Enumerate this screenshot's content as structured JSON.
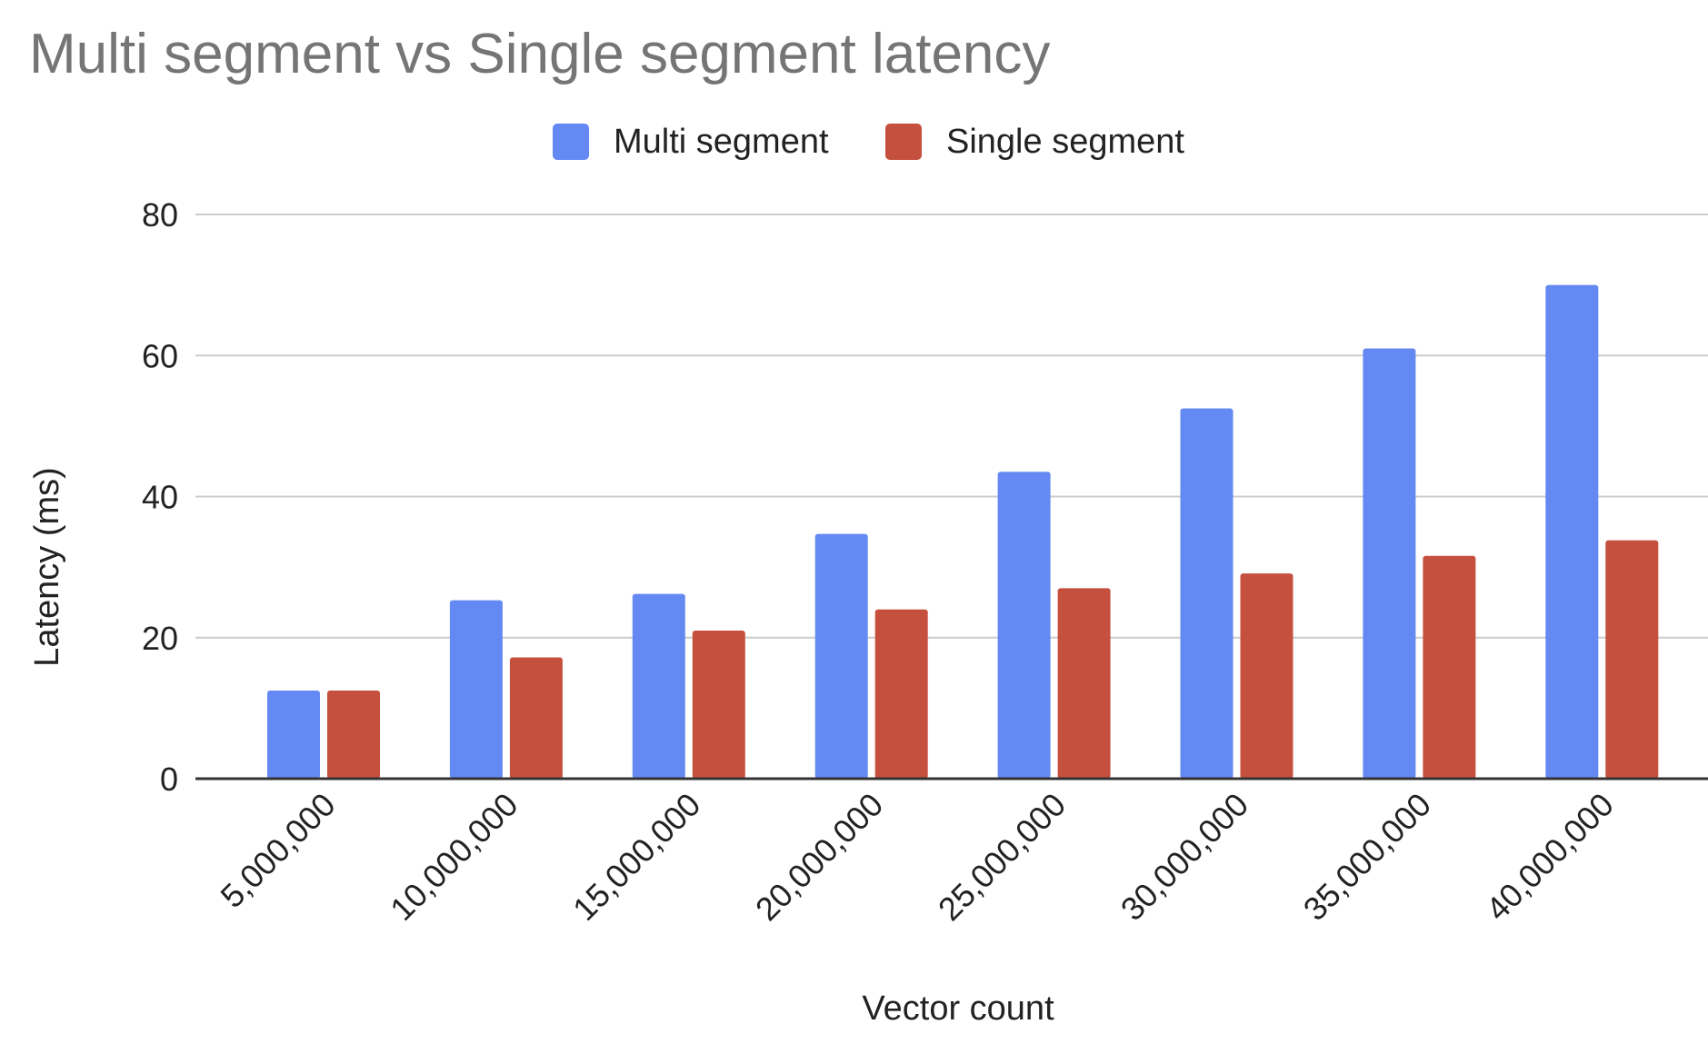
{
  "chart_data": {
    "type": "bar",
    "title": "Multi segment vs Single segment latency",
    "xlabel": "Vector count",
    "ylabel": "Latency (ms)",
    "ylim": [
      0,
      80
    ],
    "yticks": [
      "0",
      "20",
      "40",
      "60",
      "80"
    ],
    "grid": true,
    "legend_position": "top-center",
    "categories": [
      "5,000,000",
      "10,000,000",
      "15,000,000",
      "20,000,000",
      "25,000,000",
      "30,000,000",
      "35,000,000",
      "40,000,000"
    ],
    "series": [
      {
        "name": "Multi segment",
        "color": "#6589f2",
        "values": [
          12.5,
          25.3,
          26.2,
          34.7,
          43.5,
          52.5,
          61,
          70
        ]
      },
      {
        "name": "Single segment",
        "color": "#c5503e",
        "values": [
          12.5,
          17.2,
          21,
          24,
          27,
          29.1,
          31.6,
          33.8
        ]
      }
    ]
  }
}
